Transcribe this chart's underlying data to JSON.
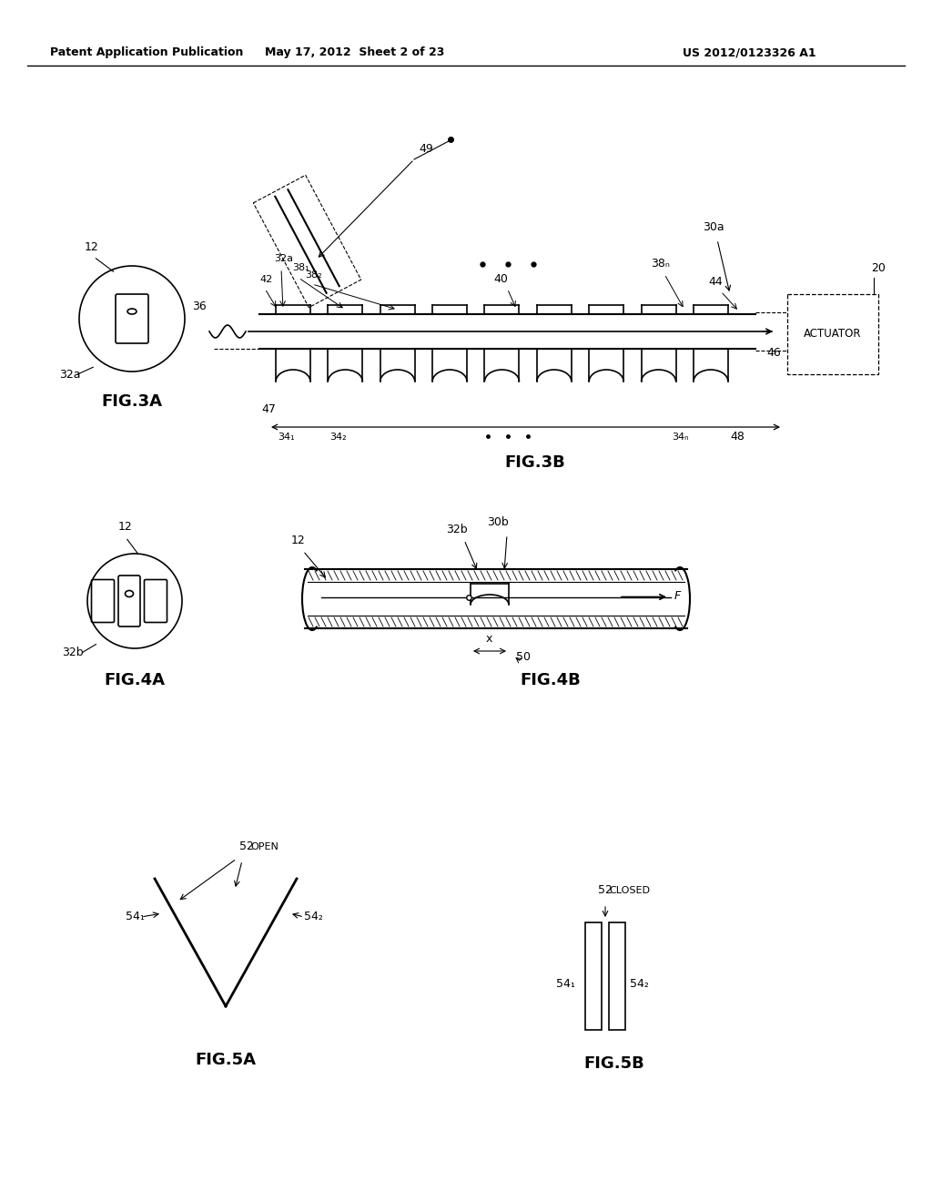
{
  "bg_color": "#ffffff",
  "header_left": "Patent Application Publication",
  "header_mid": "May 17, 2012  Sheet 2 of 23",
  "header_right": "US 2012/0123326 A1",
  "fig3a_label": "FIG.3A",
  "fig3b_label": "FIG.3B",
  "fig4a_label": "FIG.4A",
  "fig4b_label": "FIG.4B",
  "fig5a_label": "FIG.5A",
  "fig5b_label": "FIG.5B"
}
